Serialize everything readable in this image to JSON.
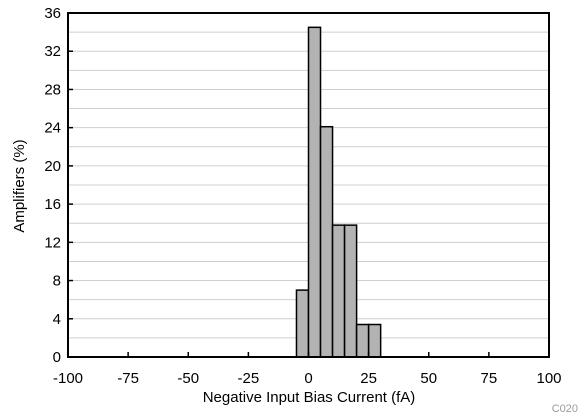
{
  "chart_data": {
    "type": "bar",
    "xlabel": "Negative Input Bias Current (fA)",
    "ylabel": "Amplifiers (%)",
    "xlim": [
      -100,
      100
    ],
    "ylim": [
      0,
      36
    ],
    "x_ticks": [
      "-100",
      "-75",
      "-50",
      "-25",
      "0",
      "25",
      "50",
      "75",
      "100"
    ],
    "y_ticks": [
      "0",
      "4",
      "8",
      "12",
      "16",
      "20",
      "24",
      "28",
      "32",
      "36"
    ],
    "bin_width": 5,
    "bins": [
      {
        "x": -2.5,
        "value": 7
      },
      {
        "x": 2.5,
        "value": 34.5
      },
      {
        "x": 7.5,
        "value": 24.1
      },
      {
        "x": 12.5,
        "value": 13.8
      },
      {
        "x": 17.5,
        "value": 13.8
      },
      {
        "x": 22.5,
        "value": 3.4
      },
      {
        "x": 27.5,
        "value": 3.4
      }
    ],
    "bar_color": "#b3b3b3",
    "grid": "horizontal",
    "figure_code": "C020"
  }
}
